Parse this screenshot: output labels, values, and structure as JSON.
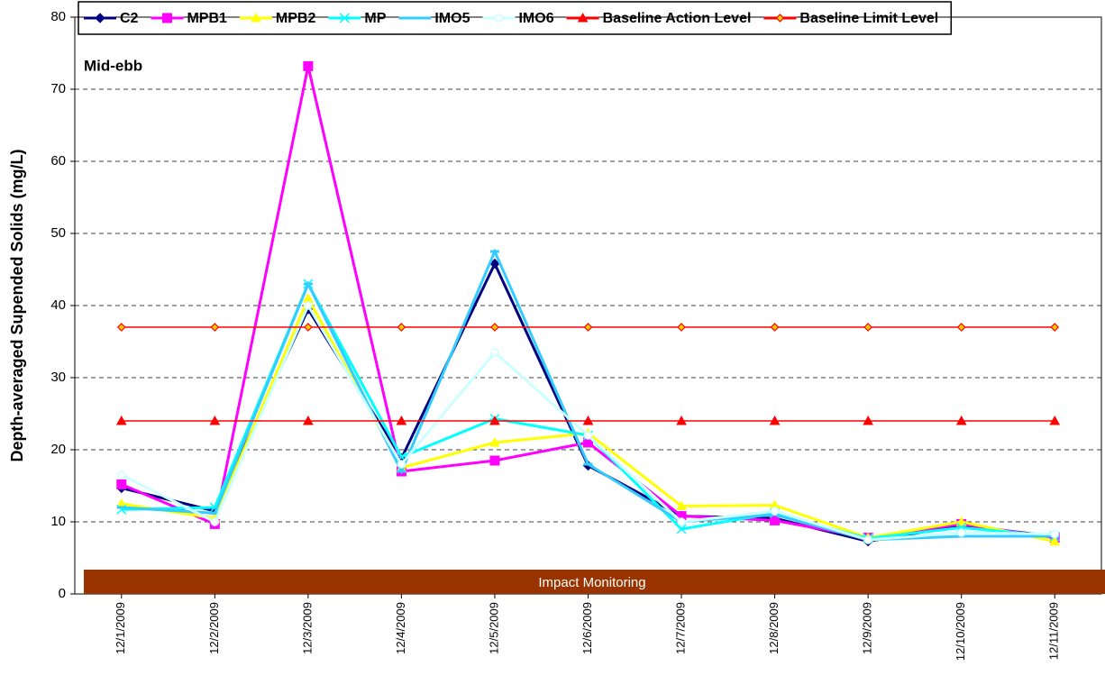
{
  "chart_data": {
    "type": "line",
    "y_axis_label": "Depth-averaged Supended Solids (mg/L)",
    "annotations": [
      "Mid-ebb",
      "Impact Monitoring"
    ],
    "categories": [
      "12/1/2009",
      "12/2/2009",
      "12/3/2009",
      "12/4/2009",
      "12/5/2009",
      "12/6/2009",
      "12/7/2009",
      "12/8/2009",
      "12/9/2009",
      "12/10/2009",
      "12/11/2009"
    ],
    "series": [
      {
        "name": "C2",
        "color": "#000080",
        "marker": "diamond",
        "values": [
          14.7,
          11.5,
          39.5,
          18.8,
          45.8,
          17.8,
          10.8,
          10.5,
          7.3,
          9.5,
          8.0
        ]
      },
      {
        "name": "MPB1",
        "color": "#ff00ff",
        "marker": "square",
        "values": [
          15.2,
          9.7,
          73.2,
          17.0,
          18.5,
          21.0,
          10.8,
          10.2,
          7.8,
          9.7,
          7.8
        ]
      },
      {
        "name": "MPB2",
        "color": "#ffff00",
        "marker": "triangle",
        "values": [
          12.5,
          10.5,
          41.0,
          17.5,
          21.0,
          22.3,
          12.2,
          12.3,
          7.8,
          10.0,
          7.3
        ]
      },
      {
        "name": "MP",
        "color": "#00ffff",
        "marker": "x",
        "values": [
          11.7,
          12.0,
          43.0,
          19.0,
          24.3,
          22.0,
          9.0,
          11.2,
          7.7,
          9.2,
          8.0
        ]
      },
      {
        "name": "IMO5",
        "color": "#33ccff",
        "marker": "dash",
        "values": [
          12.0,
          11.2,
          43.0,
          17.0,
          47.5,
          18.0,
          10.0,
          11.0,
          7.5,
          8.0,
          8.0
        ]
      },
      {
        "name": "IMO6",
        "color": "#ccffff",
        "marker": "circle",
        "values": [
          16.5,
          10.0,
          40.0,
          18.0,
          33.5,
          22.0,
          10.0,
          11.5,
          7.5,
          8.5,
          8.3
        ]
      },
      {
        "name": "Baseline Action Level",
        "color": "#ff0000",
        "marker": "triangle",
        "values": [
          24,
          24,
          24,
          24,
          24,
          24,
          24,
          24,
          24,
          24,
          24
        ]
      },
      {
        "name": "Baseline Limit Level",
        "color": "#ff0000",
        "marker": "diamond-open",
        "values": [
          37,
          37,
          37,
          37,
          37,
          37,
          37,
          37,
          37,
          37,
          37
        ]
      }
    ],
    "ylim": [
      0,
      80
    ],
    "yticks": [
      0,
      10,
      20,
      30,
      40,
      50,
      60,
      70,
      80
    ],
    "grid": true
  }
}
